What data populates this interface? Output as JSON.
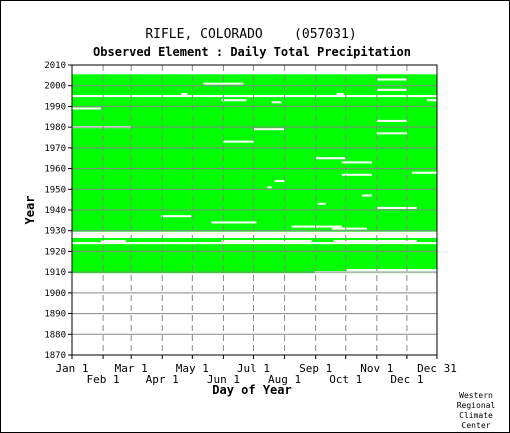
{
  "chart_data": {
    "type": "heatmap",
    "title": "RIFLE, COLORADO    (057031)",
    "subtitle": "Observed Element : Daily Total Precipitation",
    "xlabel": "Day of Year",
    "ylabel": "Year",
    "xlim_day_of_year": [
      1,
      365
    ],
    "ylim": [
      1870,
      2010
    ],
    "x_ticks_upper": [
      {
        "label": "Jan 1",
        "day": 1
      },
      {
        "label": "Mar 1",
        "day": 60
      },
      {
        "label": "May 1",
        "day": 121
      },
      {
        "label": "Jul 1",
        "day": 182
      },
      {
        "label": "Sep 1",
        "day": 244
      },
      {
        "label": "Nov 1",
        "day": 305
      },
      {
        "label": "Dec 31",
        "day": 365
      }
    ],
    "x_ticks_lower": [
      {
        "label": "Feb 1",
        "day": 32
      },
      {
        "label": "Apr 1",
        "day": 91
      },
      {
        "label": "Jun 1",
        "day": 152
      },
      {
        "label": "Aug 1",
        "day": 213
      },
      {
        "label": "Oct 1",
        "day": 274
      },
      {
        "label": "Dec 1",
        "day": 335
      }
    ],
    "y_ticks": [
      1870,
      1880,
      1890,
      1900,
      1910,
      1920,
      1930,
      1940,
      1950,
      1960,
      1970,
      1980,
      1990,
      2000,
      2010
    ],
    "grid": true,
    "data_color": "#00ff00",
    "coverage": [
      {
        "start_year": 1909.5,
        "start_day": 1,
        "end_year": 1926.5,
        "end_day": 365
      },
      {
        "start_year": 1928.5,
        "start_day": 1,
        "end_year": 2005.5,
        "end_day": 365
      }
    ],
    "missing": [
      {
        "year": 1910,
        "start_day": 243,
        "end_day": 365
      },
      {
        "year": 1911,
        "start_day": 275,
        "end_day": 365
      },
      {
        "year": 1924,
        "start_day": 1,
        "end_day": 365
      },
      {
        "year": 1925,
        "start_day": 30,
        "end_day": 55
      },
      {
        "year": 1925,
        "start_day": 150,
        "end_day": 240
      },
      {
        "year": 1925,
        "start_day": 262,
        "end_day": 345
      },
      {
        "year": 1929,
        "start_day": 1,
        "end_day": 365
      },
      {
        "year": 1931,
        "start_day": 260,
        "end_day": 295
      },
      {
        "year": 1932,
        "start_day": 220,
        "end_day": 270
      },
      {
        "year": 1934,
        "start_day": 140,
        "end_day": 185
      },
      {
        "year": 1937,
        "start_day": 90,
        "end_day": 120
      },
      {
        "year": 1941,
        "start_day": 305,
        "end_day": 345
      },
      {
        "year": 1943,
        "start_day": 246,
        "end_day": 254
      },
      {
        "year": 1947,
        "start_day": 290,
        "end_day": 300
      },
      {
        "year": 1951,
        "start_day": 196,
        "end_day": 200
      },
      {
        "year": 1954,
        "start_day": 203,
        "end_day": 213
      },
      {
        "year": 1957,
        "start_day": 270,
        "end_day": 300
      },
      {
        "year": 1958,
        "start_day": 340,
        "end_day": 365
      },
      {
        "year": 1963,
        "start_day": 270,
        "end_day": 300
      },
      {
        "year": 1965,
        "start_day": 244,
        "end_day": 274
      },
      {
        "year": 1973,
        "start_day": 152,
        "end_day": 182
      },
      {
        "year": 1977,
        "start_day": 305,
        "end_day": 335
      },
      {
        "year": 1979,
        "start_day": 182,
        "end_day": 213
      },
      {
        "year": 1980,
        "start_day": 1,
        "end_day": 60
      },
      {
        "year": 1983,
        "start_day": 305,
        "end_day": 335
      },
      {
        "year": 1989,
        "start_day": 1,
        "end_day": 30
      },
      {
        "year": 1992,
        "start_day": 200,
        "end_day": 210
      },
      {
        "year": 1993,
        "start_day": 150,
        "end_day": 175
      },
      {
        "year": 1993,
        "start_day": 355,
        "end_day": 365
      },
      {
        "year": 1995,
        "start_day": 1,
        "end_day": 365
      },
      {
        "year": 1996,
        "start_day": 110,
        "end_day": 116
      },
      {
        "year": 1996,
        "start_day": 265,
        "end_day": 272
      },
      {
        "year": 1998,
        "start_day": 305,
        "end_day": 335
      },
      {
        "year": 2001,
        "start_day": 132,
        "end_day": 172
      },
      {
        "year": 2003,
        "start_day": 305,
        "end_day": 335
      }
    ]
  },
  "footer": {
    "credit_lines": [
      "Western",
      "Regional",
      "Climate",
      "Center"
    ]
  }
}
